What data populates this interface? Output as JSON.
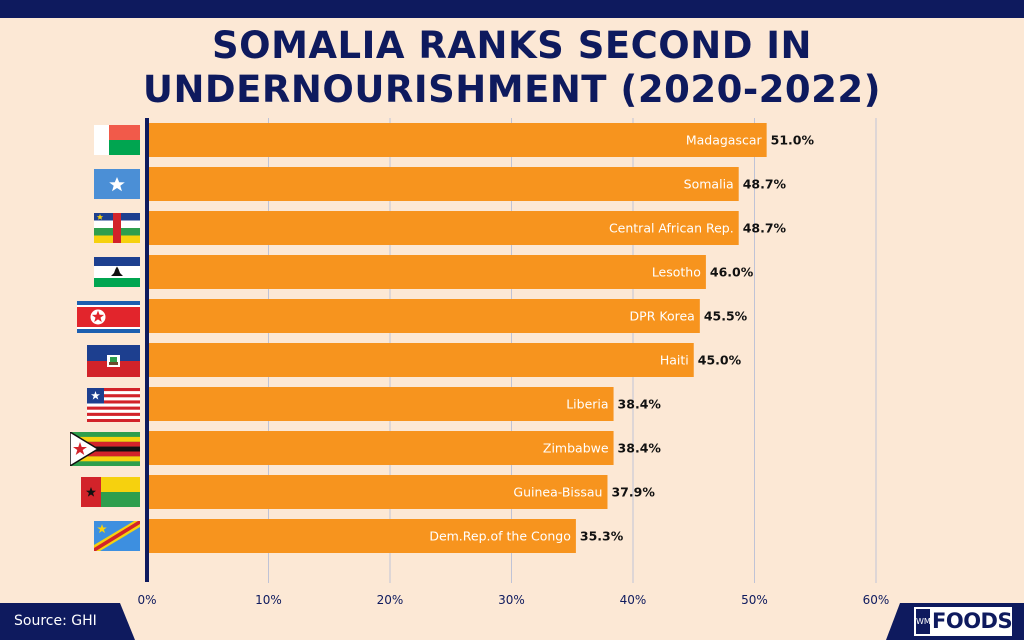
{
  "title": {
    "line1": "SOMALIA RANKS SECOND IN",
    "line2": "UNDERNOURISHMENT (2020-2022)"
  },
  "source": "Source: GHI",
  "logo": {
    "mark": "WM",
    "text": "FOODS"
  },
  "colors": {
    "bar": "#F7941E",
    "navy": "#0E1A5E",
    "background": "#FCE8D5",
    "grid": "#BFC3D6"
  },
  "chart_data": {
    "type": "bar",
    "orientation": "horizontal",
    "title": "SOMALIA RANKS SECOND IN UNDERNOURISHMENT (2020-2022)",
    "categories": [
      "Madagascar",
      "Somalia",
      "Central African Rep.",
      "Lesotho",
      "DPR Korea",
      "Haiti",
      "Liberia",
      "Zimbabwe",
      "Guinea-Bissau",
      "Dem.Rep.of the Congo"
    ],
    "values": [
      51.0,
      48.7,
      48.7,
      46.0,
      45.5,
      45.0,
      38.4,
      38.4,
      37.9,
      35.3
    ],
    "value_labels": [
      "51.0%",
      "48.7%",
      "48.7%",
      "46.0%",
      "45.5%",
      "45.0%",
      "38.4%",
      "38.4%",
      "37.9%",
      "35.3%"
    ],
    "flags": [
      "madagascar-flag",
      "somalia-flag",
      "central-african-republic-flag",
      "lesotho-flag",
      "north-korea-flag",
      "haiti-flag",
      "liberia-flag",
      "zimbabwe-flag",
      "guinea-bissau-flag",
      "dr-congo-flag"
    ],
    "xlim": [
      0,
      60
    ],
    "xticks": [
      0,
      10,
      20,
      30,
      40,
      50,
      60
    ],
    "xtick_labels": [
      "0%",
      "10%",
      "20%",
      "30%",
      "40%",
      "50%",
      "60%"
    ],
    "grid": true,
    "xlabel": "",
    "ylabel": ""
  }
}
